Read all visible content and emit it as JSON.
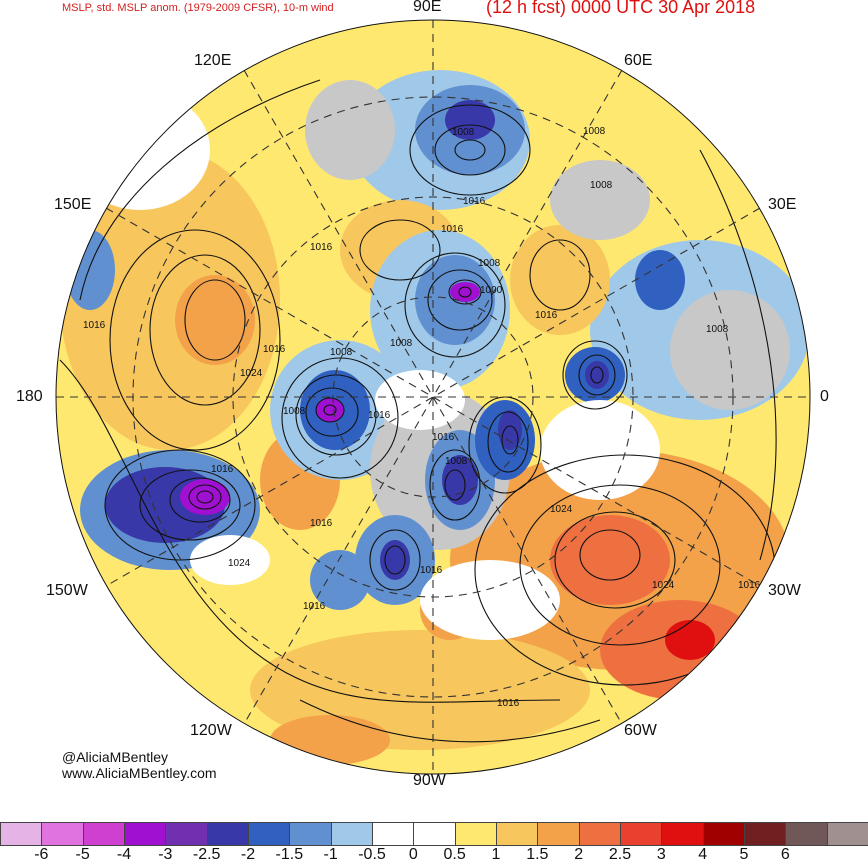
{
  "header": {
    "left_title": "MSLP, std. MSLP anom. (1979-2009 CFSR), 10-m wind",
    "forecast_title": "(12 h fcst) 0000 UTC 30 Apr 2018"
  },
  "longitude_labels": {
    "e90": "90E",
    "e60": "60E",
    "e30": "30E",
    "zero": "0",
    "w30": "30W",
    "w60": "60W",
    "w90": "90W",
    "w120": "120W",
    "w150": "150W",
    "deg180": "180",
    "e150": "150E",
    "e120": "120E"
  },
  "credits": {
    "handle": "@AliciaMBentley",
    "website": "www.AliciaMBentley.com"
  },
  "isobar_labels": [
    "1008",
    "1008",
    "1008",
    "1016",
    "1016",
    "1016",
    "1000",
    "1008",
    "1016",
    "1016",
    "1024",
    "1008",
    "1008",
    "1016",
    "1016",
    "1008",
    "1008",
    "1024",
    "1016",
    "1024",
    "1008",
    "1016",
    "1016",
    "1016",
    "1024",
    "1016",
    "1016",
    "1016"
  ],
  "colorbar": {
    "colors": [
      "#e6b3e6",
      "#e073e0",
      "#d040d0",
      "#a010d0",
      "#7030b0",
      "#3838a8",
      "#3060c0",
      "#6090d0",
      "#a0c8e8",
      "#ffffff",
      "#ffffff",
      "#ffe870",
      "#f7c65c",
      "#f3a24a",
      "#ee7040",
      "#ea4030",
      "#e01010",
      "#a00000",
      "#702020",
      "#705858",
      "#a09090"
    ],
    "ticks": [
      "-6",
      "-5",
      "-4",
      "-3",
      "-2.5",
      "-2",
      "-1.5",
      "-1",
      "-0.5",
      "0",
      "0.5",
      "1",
      "1.5",
      "2",
      "2.5",
      "3",
      "4",
      "5",
      "6"
    ]
  }
}
